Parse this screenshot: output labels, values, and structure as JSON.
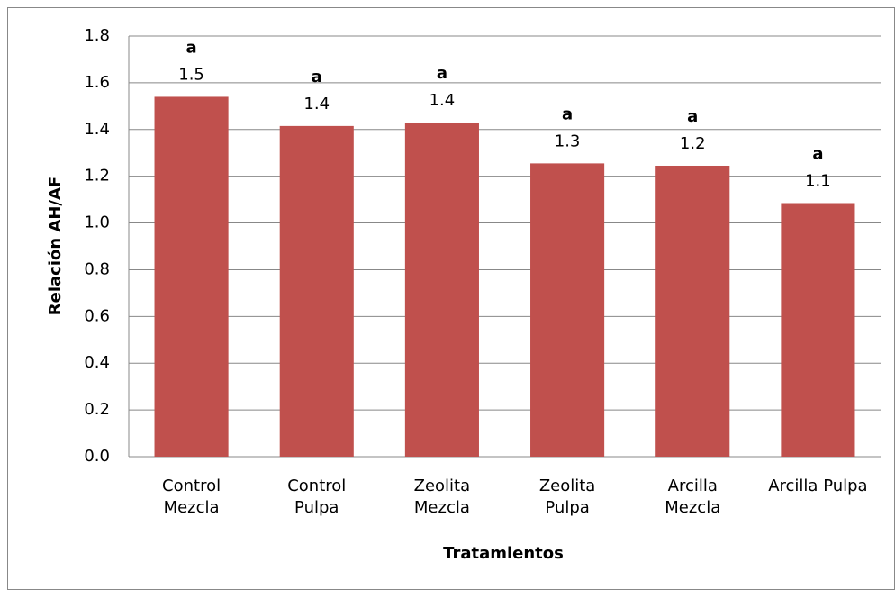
{
  "chart_data": {
    "type": "bar",
    "x_label": "Tratamientos",
    "y_label": "Relación AH/AF",
    "categories": [
      "Control\nMezcla",
      "Control\nPulpa",
      "Zeolita\nMezcla",
      "Zeolita\nPulpa",
      "Arcilla\nMezcla",
      "Arcilla Pulpa"
    ],
    "values": [
      1.54,
      1.415,
      1.43,
      1.255,
      1.245,
      1.085
    ],
    "value_labels": [
      "1.5",
      "1.4",
      "1.4",
      "1.3",
      "1.2",
      "1.1"
    ],
    "annotations": [
      "a",
      "a",
      "a",
      "a",
      "a",
      "a"
    ],
    "color": "#c0504d",
    "ylim": [
      0,
      1.8
    ],
    "yticks": [
      {
        "value": 0,
        "label": "0.0"
      },
      0.2,
      0.4,
      0.6,
      0.8,
      {
        "value": 1,
        "label": "1.0"
      },
      1.2,
      1.4,
      1.6,
      1.8
    ],
    "grid": true
  }
}
